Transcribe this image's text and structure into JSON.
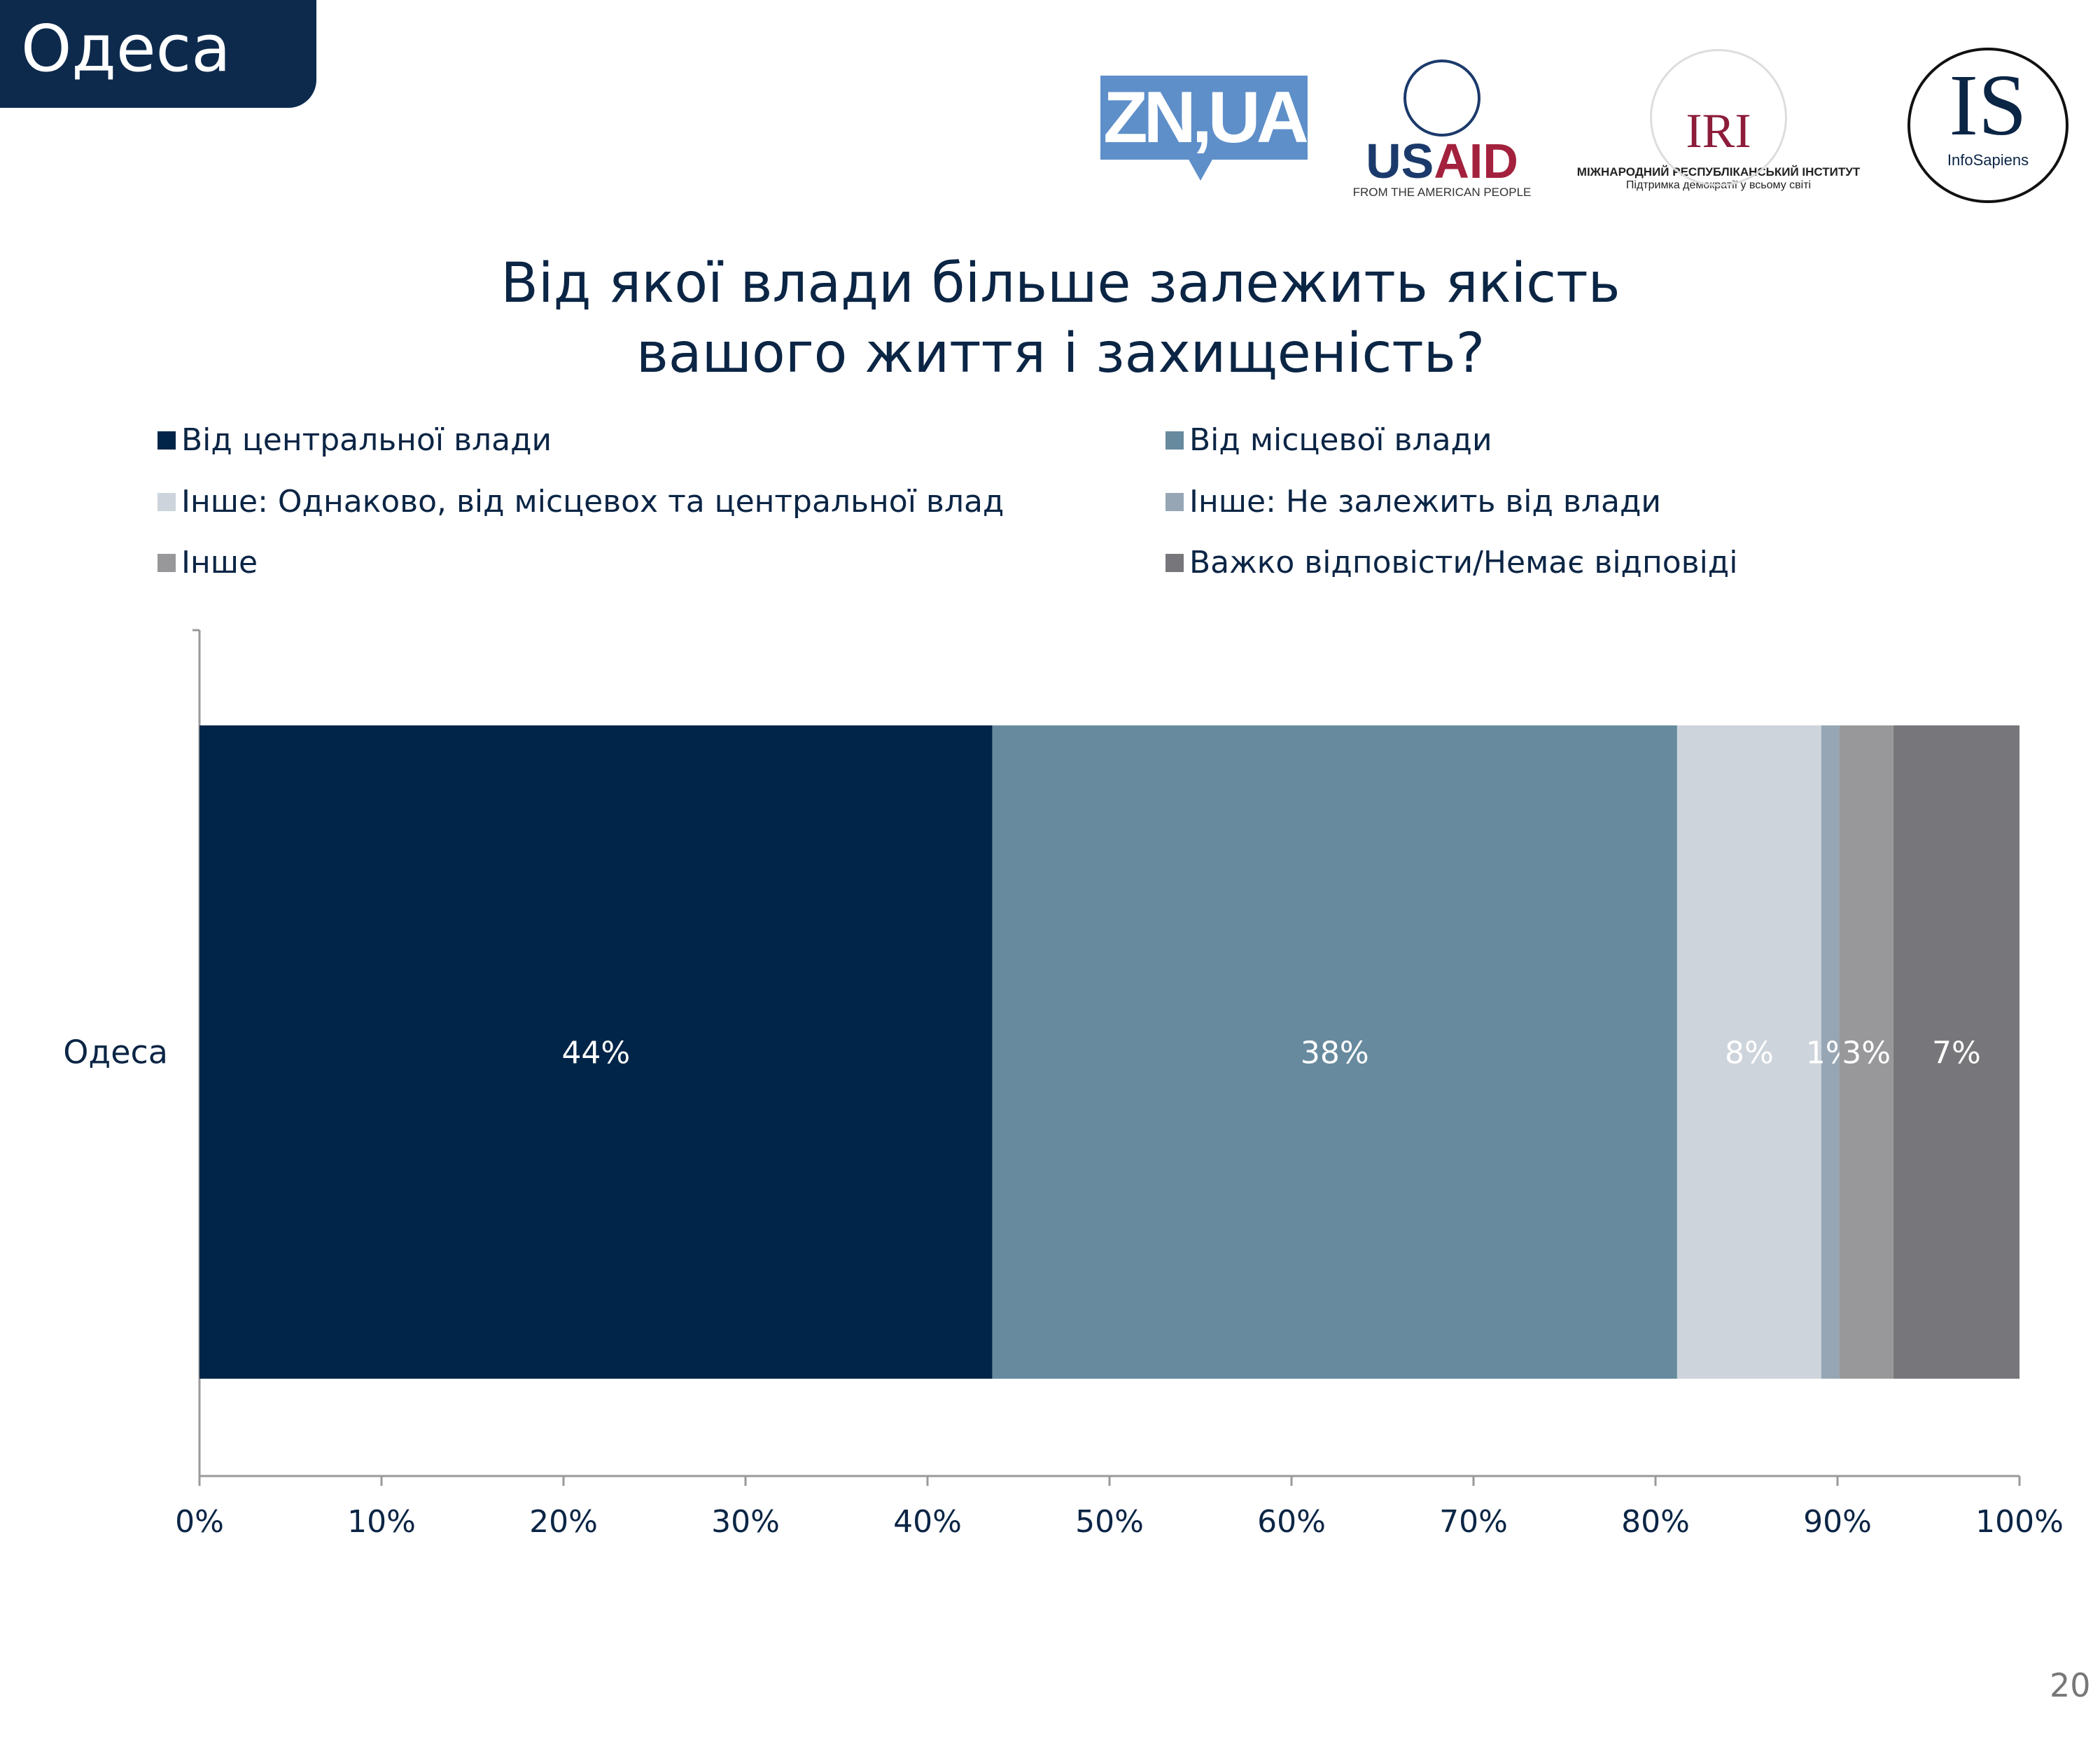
{
  "header": {
    "region": "Одеса"
  },
  "logos": {
    "zn": "ZN,UA",
    "usaid": {
      "us": "US",
      "aid": "AID",
      "tagline": "FROM THE AMERICAN PEOPLE"
    },
    "iri": {
      "mark": "IRI",
      "name": "МІЖНАРОДНИЙ РЕСПУБЛІКАНСЬКИЙ ІНСТИТУТ",
      "tagline": "Підтримка демократії у всьому світі"
    },
    "infosapiens": {
      "mark": "IS",
      "name": "InfoSapiens"
    }
  },
  "page_number": "20",
  "chart_data": {
    "type": "bar",
    "orientation": "horizontal",
    "stacked": true,
    "title": [
      "Від якої влади більше залежить якість",
      "вашого життя і захищеність?"
    ],
    "categories": [
      "Одеса"
    ],
    "series": [
      {
        "name": "Від центральної влади",
        "values": [
          44
        ],
        "label": "44%",
        "color": "#002548"
      },
      {
        "name": "Від місцевої влади",
        "values": [
          38
        ],
        "label": "38%",
        "color": "#678a9e"
      },
      {
        "name": "Інше: Однаково, від місцевох та центральної влад",
        "values": [
          8
        ],
        "label": "8%",
        "color": "#cdd4db"
      },
      {
        "name": "Інше: Не залежить від влади",
        "values": [
          1
        ],
        "label": "1%",
        "color": "#97a6b5"
      },
      {
        "name": "Інше",
        "values": [
          3
        ],
        "label": "3%",
        "color": "#98989a"
      },
      {
        "name": "Важко відповісти/Немає відповіді",
        "values": [
          7
        ],
        "label": "7%",
        "color": "#77777b"
      }
    ],
    "xlim": [
      0,
      100
    ],
    "xticks": [
      "0%",
      "10%",
      "20%",
      "30%",
      "40%",
      "50%",
      "60%",
      "70%",
      "80%",
      "90%",
      "100%"
    ],
    "legend": "top",
    "grid": false
  }
}
